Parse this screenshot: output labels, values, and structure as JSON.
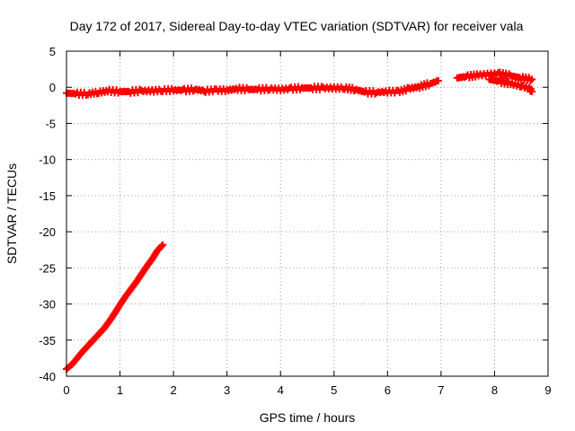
{
  "chart_data": {
    "type": "scatter",
    "title": "Day 172 of 2017, Sidereal Day-to-day VTEC variation (SDTVAR) for receiver vala",
    "xlabel": "GPS time / hours",
    "ylabel": "SDTVAR / TECUs",
    "xlim": [
      0,
      9
    ],
    "ylim": [
      -40,
      5
    ],
    "xticks": [
      "0",
      "1",
      "2",
      "3",
      "4",
      "5",
      "6",
      "7",
      "8",
      "9"
    ],
    "yticks": [
      "5",
      "0",
      "-5",
      "-10",
      "-15",
      "-20",
      "-25",
      "-30",
      "-35",
      "-40"
    ],
    "grid": true,
    "marker": "plus",
    "color": "#ff0000",
    "series": [
      {
        "points": [
          [
            0.0,
            -39.0
          ],
          [
            0.1,
            -38.4
          ],
          [
            0.2,
            -37.5
          ],
          [
            0.3,
            -36.6
          ],
          [
            0.4,
            -35.8
          ],
          [
            0.5,
            -35.0
          ],
          [
            0.6,
            -34.2
          ],
          [
            0.7,
            -33.4
          ],
          [
            0.8,
            -32.4
          ],
          [
            0.9,
            -31.3
          ],
          [
            1.0,
            -30.1
          ],
          [
            1.1,
            -29.0
          ],
          [
            1.2,
            -28.0
          ],
          [
            1.3,
            -27.0
          ],
          [
            1.4,
            -25.9
          ],
          [
            1.5,
            -24.8
          ],
          [
            1.6,
            -23.8
          ],
          [
            1.7,
            -22.6
          ],
          [
            1.8,
            -21.8
          ]
        ]
      },
      {
        "points": [
          [
            0.0,
            -0.8
          ],
          [
            0.2,
            -0.9
          ],
          [
            0.4,
            -0.9
          ],
          [
            0.6,
            -0.7
          ],
          [
            0.8,
            -0.5
          ],
          [
            1.0,
            -0.6
          ],
          [
            1.2,
            -0.6
          ],
          [
            1.4,
            -0.5
          ],
          [
            1.6,
            -0.5
          ],
          [
            1.8,
            -0.4
          ],
          [
            2.0,
            -0.4
          ],
          [
            2.2,
            -0.4
          ],
          [
            2.4,
            -0.3
          ],
          [
            2.6,
            -0.5
          ],
          [
            2.8,
            -0.4
          ],
          [
            3.0,
            -0.4
          ],
          [
            3.2,
            -0.2
          ],
          [
            3.4,
            -0.3
          ],
          [
            3.6,
            -0.3
          ],
          [
            3.8,
            -0.2
          ],
          [
            4.0,
            -0.3
          ],
          [
            4.2,
            -0.2
          ],
          [
            4.4,
            -0.1
          ],
          [
            4.6,
            -0.1
          ],
          [
            4.8,
            -0.1
          ],
          [
            5.0,
            -0.1
          ],
          [
            5.2,
            -0.1
          ],
          [
            5.4,
            -0.3
          ],
          [
            5.6,
            -0.7
          ],
          [
            5.8,
            -0.7
          ],
          [
            6.0,
            -0.6
          ],
          [
            6.2,
            -0.6
          ],
          [
            6.4,
            -0.2
          ],
          [
            6.6,
            0.1
          ],
          [
            6.8,
            0.5
          ],
          [
            6.95,
            0.9
          ]
        ]
      },
      {
        "points": [
          [
            7.3,
            1.3
          ],
          [
            7.5,
            1.5
          ],
          [
            7.7,
            1.7
          ],
          [
            7.9,
            1.8
          ],
          [
            8.1,
            1.9
          ],
          [
            8.3,
            1.6
          ],
          [
            8.5,
            1.3
          ],
          [
            8.7,
            1.1
          ]
        ]
      },
      {
        "points": [
          [
            7.9,
            1.1
          ],
          [
            8.1,
            0.8
          ],
          [
            8.3,
            0.5
          ],
          [
            8.5,
            0.2
          ],
          [
            8.65,
            -0.2
          ],
          [
            8.7,
            -0.6
          ]
        ]
      }
    ]
  }
}
